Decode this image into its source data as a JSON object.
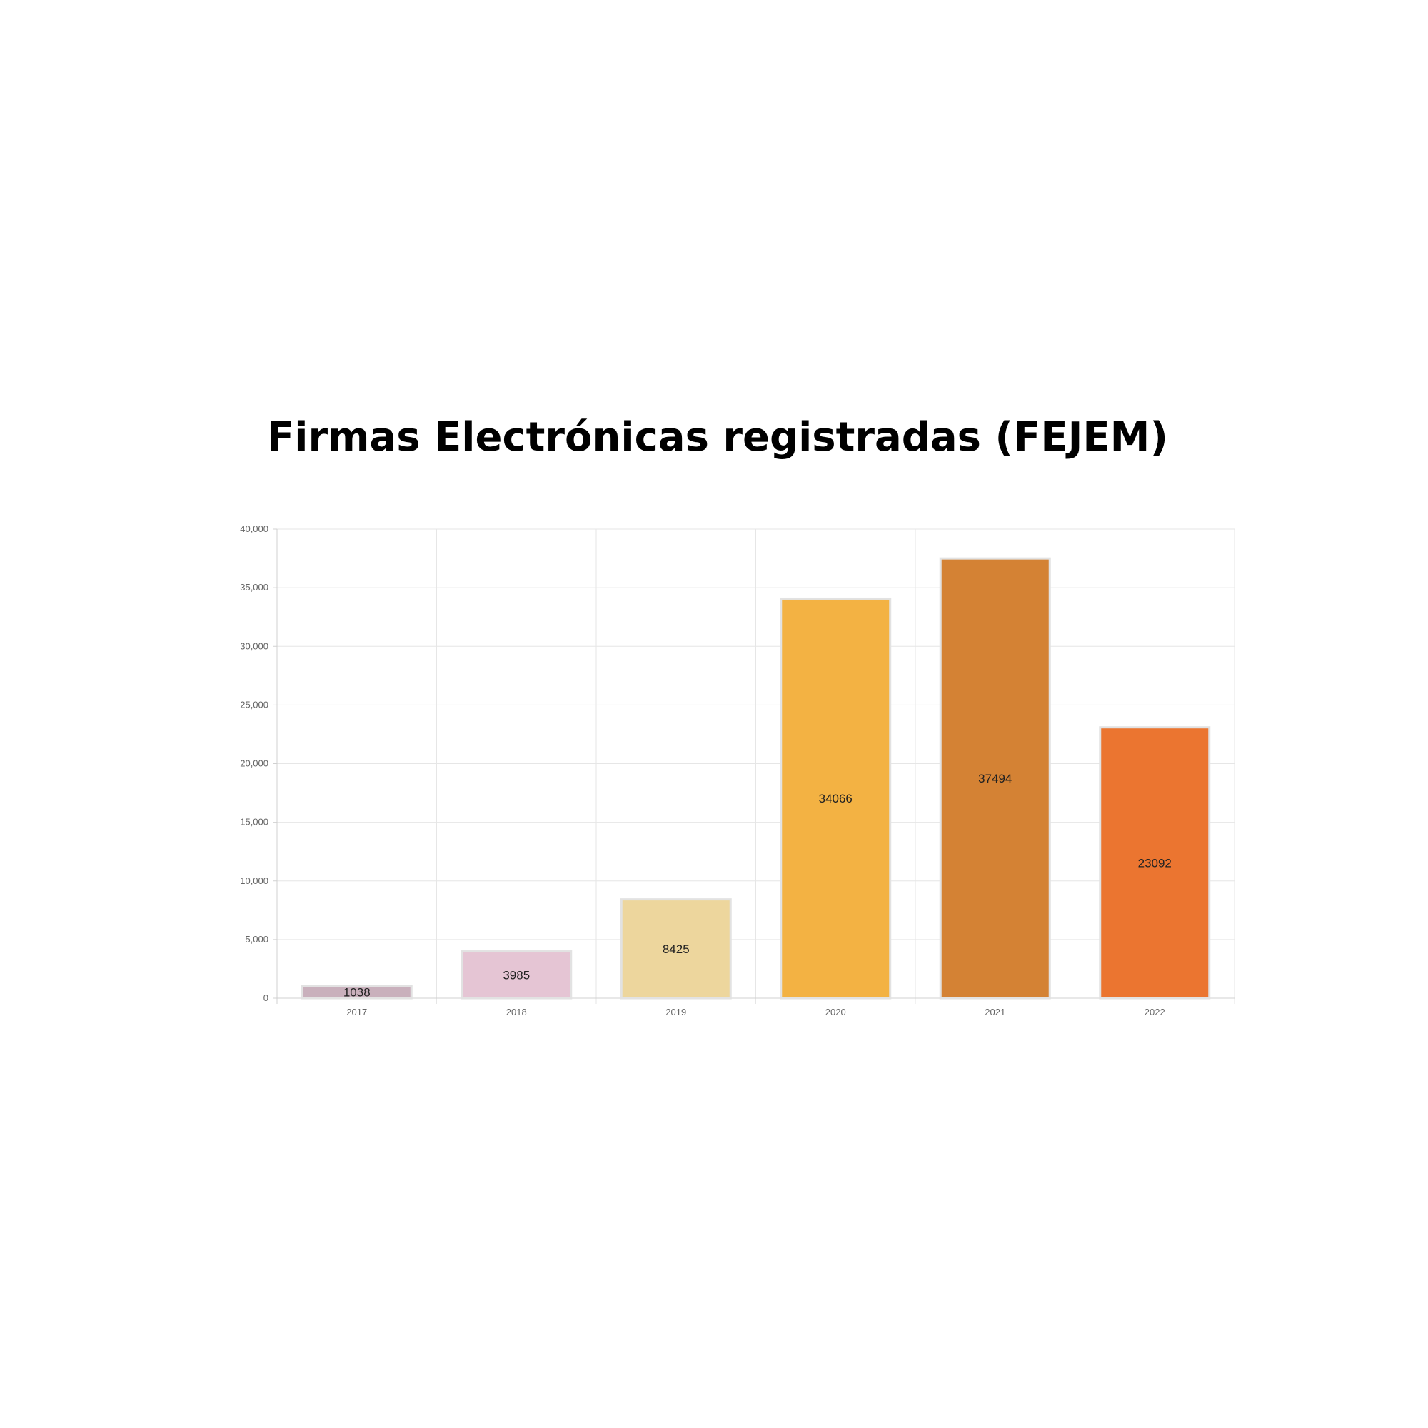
{
  "title": "Firmas Electrónicas registradas (FEJEM)",
  "chart_data": {
    "type": "bar",
    "title": "Firmas Electrónicas registradas (FEJEM)",
    "xlabel": "",
    "ylabel": "",
    "categories": [
      "2017",
      "2018",
      "2019",
      "2020",
      "2021",
      "2022"
    ],
    "values": [
      1038,
      3985,
      8425,
      34066,
      37494,
      23092
    ],
    "data_labels": [
      "1038",
      "3985",
      "8425",
      "34066",
      "37494",
      "23092"
    ],
    "colors": [
      "#c9b0bc",
      "#e5c5d4",
      "#edd69d",
      "#f3b243",
      "#d48234",
      "#eb7530"
    ],
    "ylim": [
      0,
      40000
    ],
    "yticks": [
      0,
      5000,
      10000,
      15000,
      20000,
      25000,
      30000,
      35000,
      40000
    ],
    "ytick_labels": [
      "0",
      "5,000",
      "10,000",
      "15,000",
      "20,000",
      "25,000",
      "30,000",
      "35,000",
      "40,000"
    ],
    "grid": true,
    "legend": "none"
  }
}
